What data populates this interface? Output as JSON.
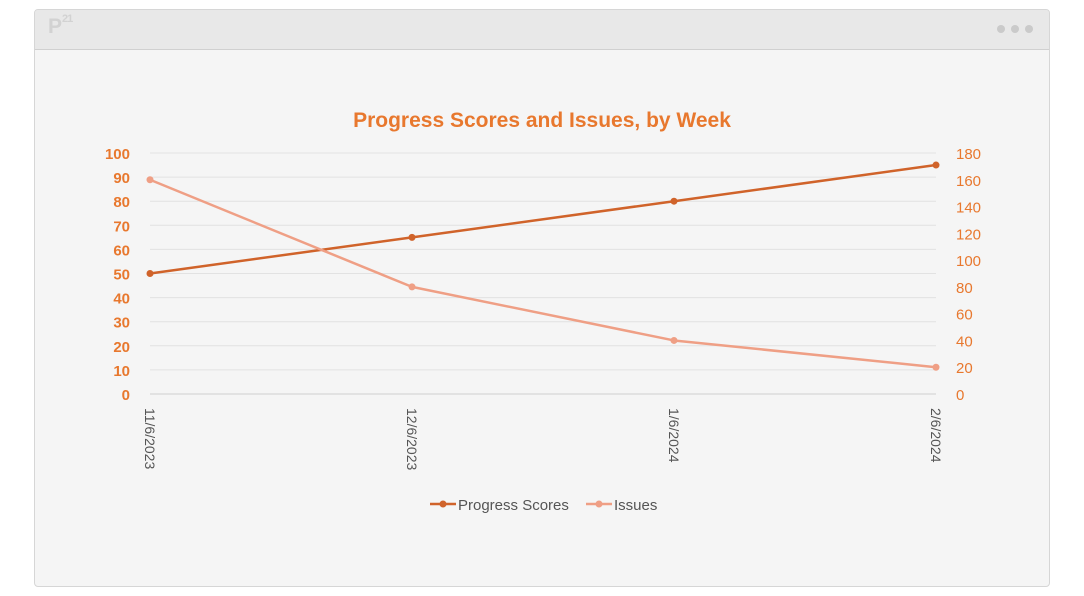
{
  "window": {
    "logo_text": "P",
    "logo_sup": "21",
    "menu_icon": "more-horizontal-icon"
  },
  "chart_data": {
    "type": "line",
    "title": "Progress Scores and Issues, by Week",
    "categories": [
      "11/6/2023",
      "12/6/2023",
      "1/6/2024",
      "2/6/2024"
    ],
    "series": [
      {
        "name": "Progress Scores",
        "axis": "left",
        "values": [
          50,
          65,
          80,
          95
        ],
        "color": "#d0632a"
      },
      {
        "name": "Issues",
        "axis": "right",
        "values": [
          160,
          80,
          40,
          20
        ],
        "color": "#ef9f85"
      }
    ],
    "y_left": {
      "min": 0,
      "max": 100,
      "step": 10,
      "color": "#e8782e"
    },
    "y_right": {
      "min": 0,
      "max": 180,
      "step": 20,
      "color": "#e8782e"
    },
    "title_color": "#e8782e",
    "grid": true,
    "legend": "bottom"
  }
}
